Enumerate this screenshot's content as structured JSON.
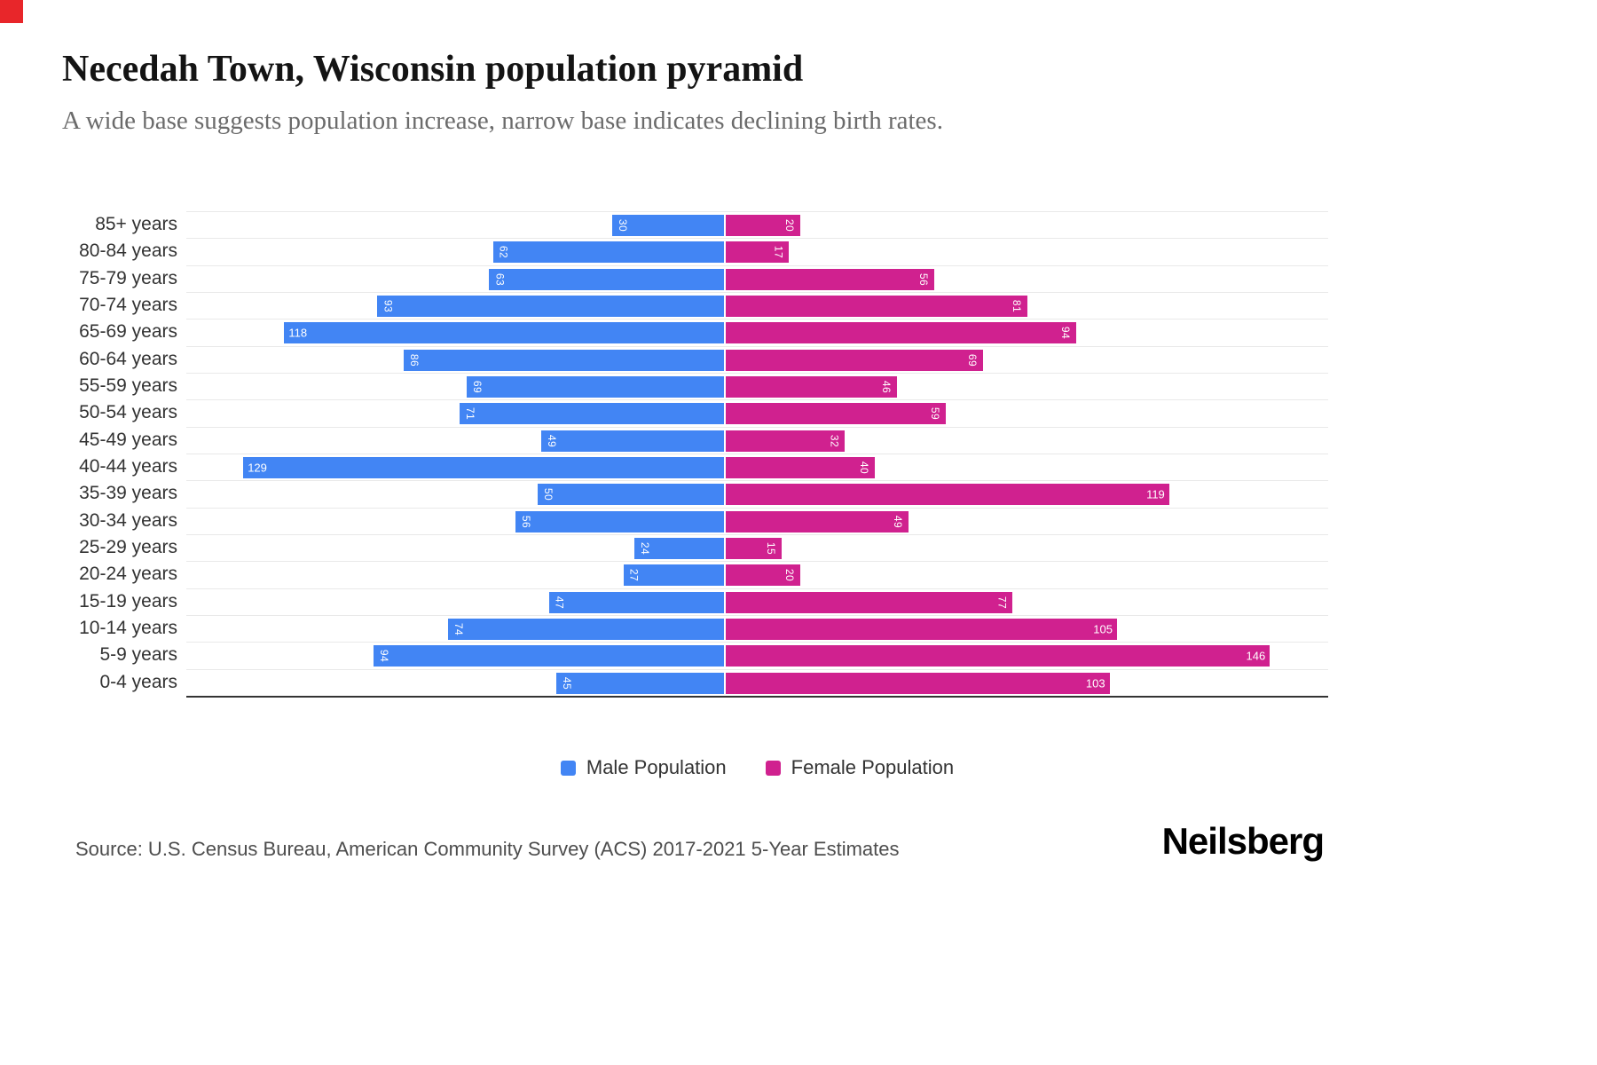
{
  "page": {
    "title": "Necedah Town, Wisconsin population pyramid",
    "subtitle": "A wide base suggests population increase, narrow base indicates declining birth rates.",
    "source": "Source: U.S. Census Bureau, American Community Survey (ACS) 2017-2021 5-Year Estimates",
    "brand": "Neilsberg"
  },
  "legend": {
    "male_label": "Male Population",
    "female_label": "Female Population"
  },
  "colors": {
    "male": "#4285F4",
    "female": "#D0218F",
    "gridline": "#e9e9e9",
    "axis_line": "#333333",
    "corner_marker": "#e8262a"
  },
  "chart_data": {
    "type": "bar",
    "variant": "population-pyramid",
    "orientation": "horizontal",
    "title": "Necedah Town, Wisconsin population pyramid",
    "subtitle": "A wide base suggests population increase, narrow base indicates declining birth rates.",
    "categories": [
      "85+ years",
      "80-84 years",
      "75-79 years",
      "70-74 years",
      "65-69 years",
      "60-64 years",
      "55-59 years",
      "50-54 years",
      "45-49 years",
      "40-44 years",
      "35-39 years",
      "30-34 years",
      "25-29 years",
      "20-24 years",
      "15-19 years",
      "10-14 years",
      "5-9 years",
      "0-4 years"
    ],
    "series": [
      {
        "name": "Male Population",
        "side": "left",
        "color": "#4285F4",
        "values": [
          30,
          62,
          63,
          93,
          118,
          86,
          69,
          71,
          49,
          129,
          50,
          56,
          24,
          27,
          47,
          74,
          94,
          45
        ]
      },
      {
        "name": "Female Population",
        "side": "right",
        "color": "#D0218F",
        "values": [
          20,
          17,
          56,
          81,
          94,
          69,
          46,
          59,
          32,
          40,
          119,
          49,
          15,
          20,
          77,
          105,
          146,
          103
        ]
      }
    ],
    "xlim_left": [
      0,
      145
    ],
    "xlim_right": [
      0,
      162
    ],
    "grid": true,
    "legend_position": "bottom",
    "data_labels": "inside-bar-ends, white"
  }
}
